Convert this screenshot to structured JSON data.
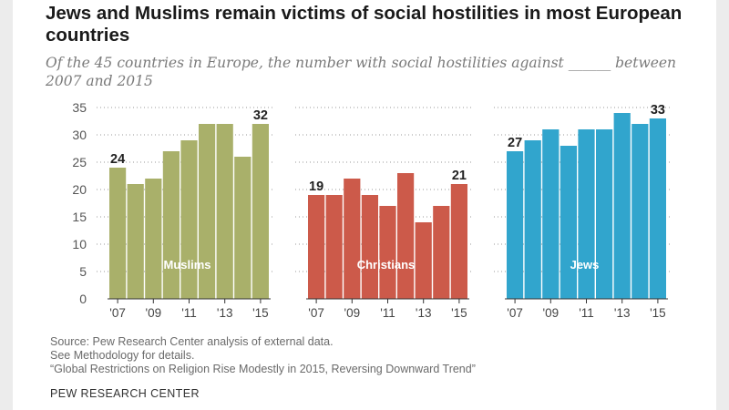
{
  "header": {
    "title": "Jews and Muslims remain victims of social hostilities in most European countries",
    "subtitle": "Of the 45 countries in Europe, the number with social hostilities against ______ between 2007 and 2015"
  },
  "notes": {
    "source": "Source: Pew Research Center analysis of external data.",
    "methodology": "See Methodology for details.",
    "report": "“Global Restrictions on Religion Rise Modestly in 2015, Reversing Downward Trend”"
  },
  "brand": "PEW RESEARCH CENTER",
  "chart_data": {
    "type": "bar",
    "ylim": [
      0,
      35
    ],
    "yticks": [
      0,
      5,
      10,
      15,
      20,
      25,
      30,
      35
    ],
    "grid": true,
    "years": [
      "2007",
      "2008",
      "2009",
      "2010",
      "2011",
      "2012",
      "2013",
      "2014",
      "2015"
    ],
    "x_tick_labels": [
      "'07",
      "'09",
      "'11",
      "'13",
      "'15"
    ],
    "series": [
      {
        "name": "Muslims",
        "color": "#a9b06a",
        "values": [
          24,
          21,
          22,
          27,
          29,
          32,
          32,
          26,
          32
        ],
        "labeled": [
          "24",
          "",
          "",
          "",
          "",
          "",
          "",
          "",
          "32"
        ]
      },
      {
        "name": "Christians",
        "color": "#cc5a4a",
        "values": [
          19,
          19,
          22,
          19,
          17,
          23,
          14,
          17,
          21
        ],
        "labeled": [
          "19",
          "",
          "",
          "",
          "",
          "",
          "",
          "",
          "21"
        ]
      },
      {
        "name": "Jews",
        "color": "#31a5cd",
        "values": [
          27,
          29,
          31,
          28,
          31,
          31,
          34,
          32,
          33
        ],
        "labeled": [
          "27",
          "",
          "",
          "",
          "",
          "",
          "",
          "",
          "33"
        ]
      }
    ]
  }
}
